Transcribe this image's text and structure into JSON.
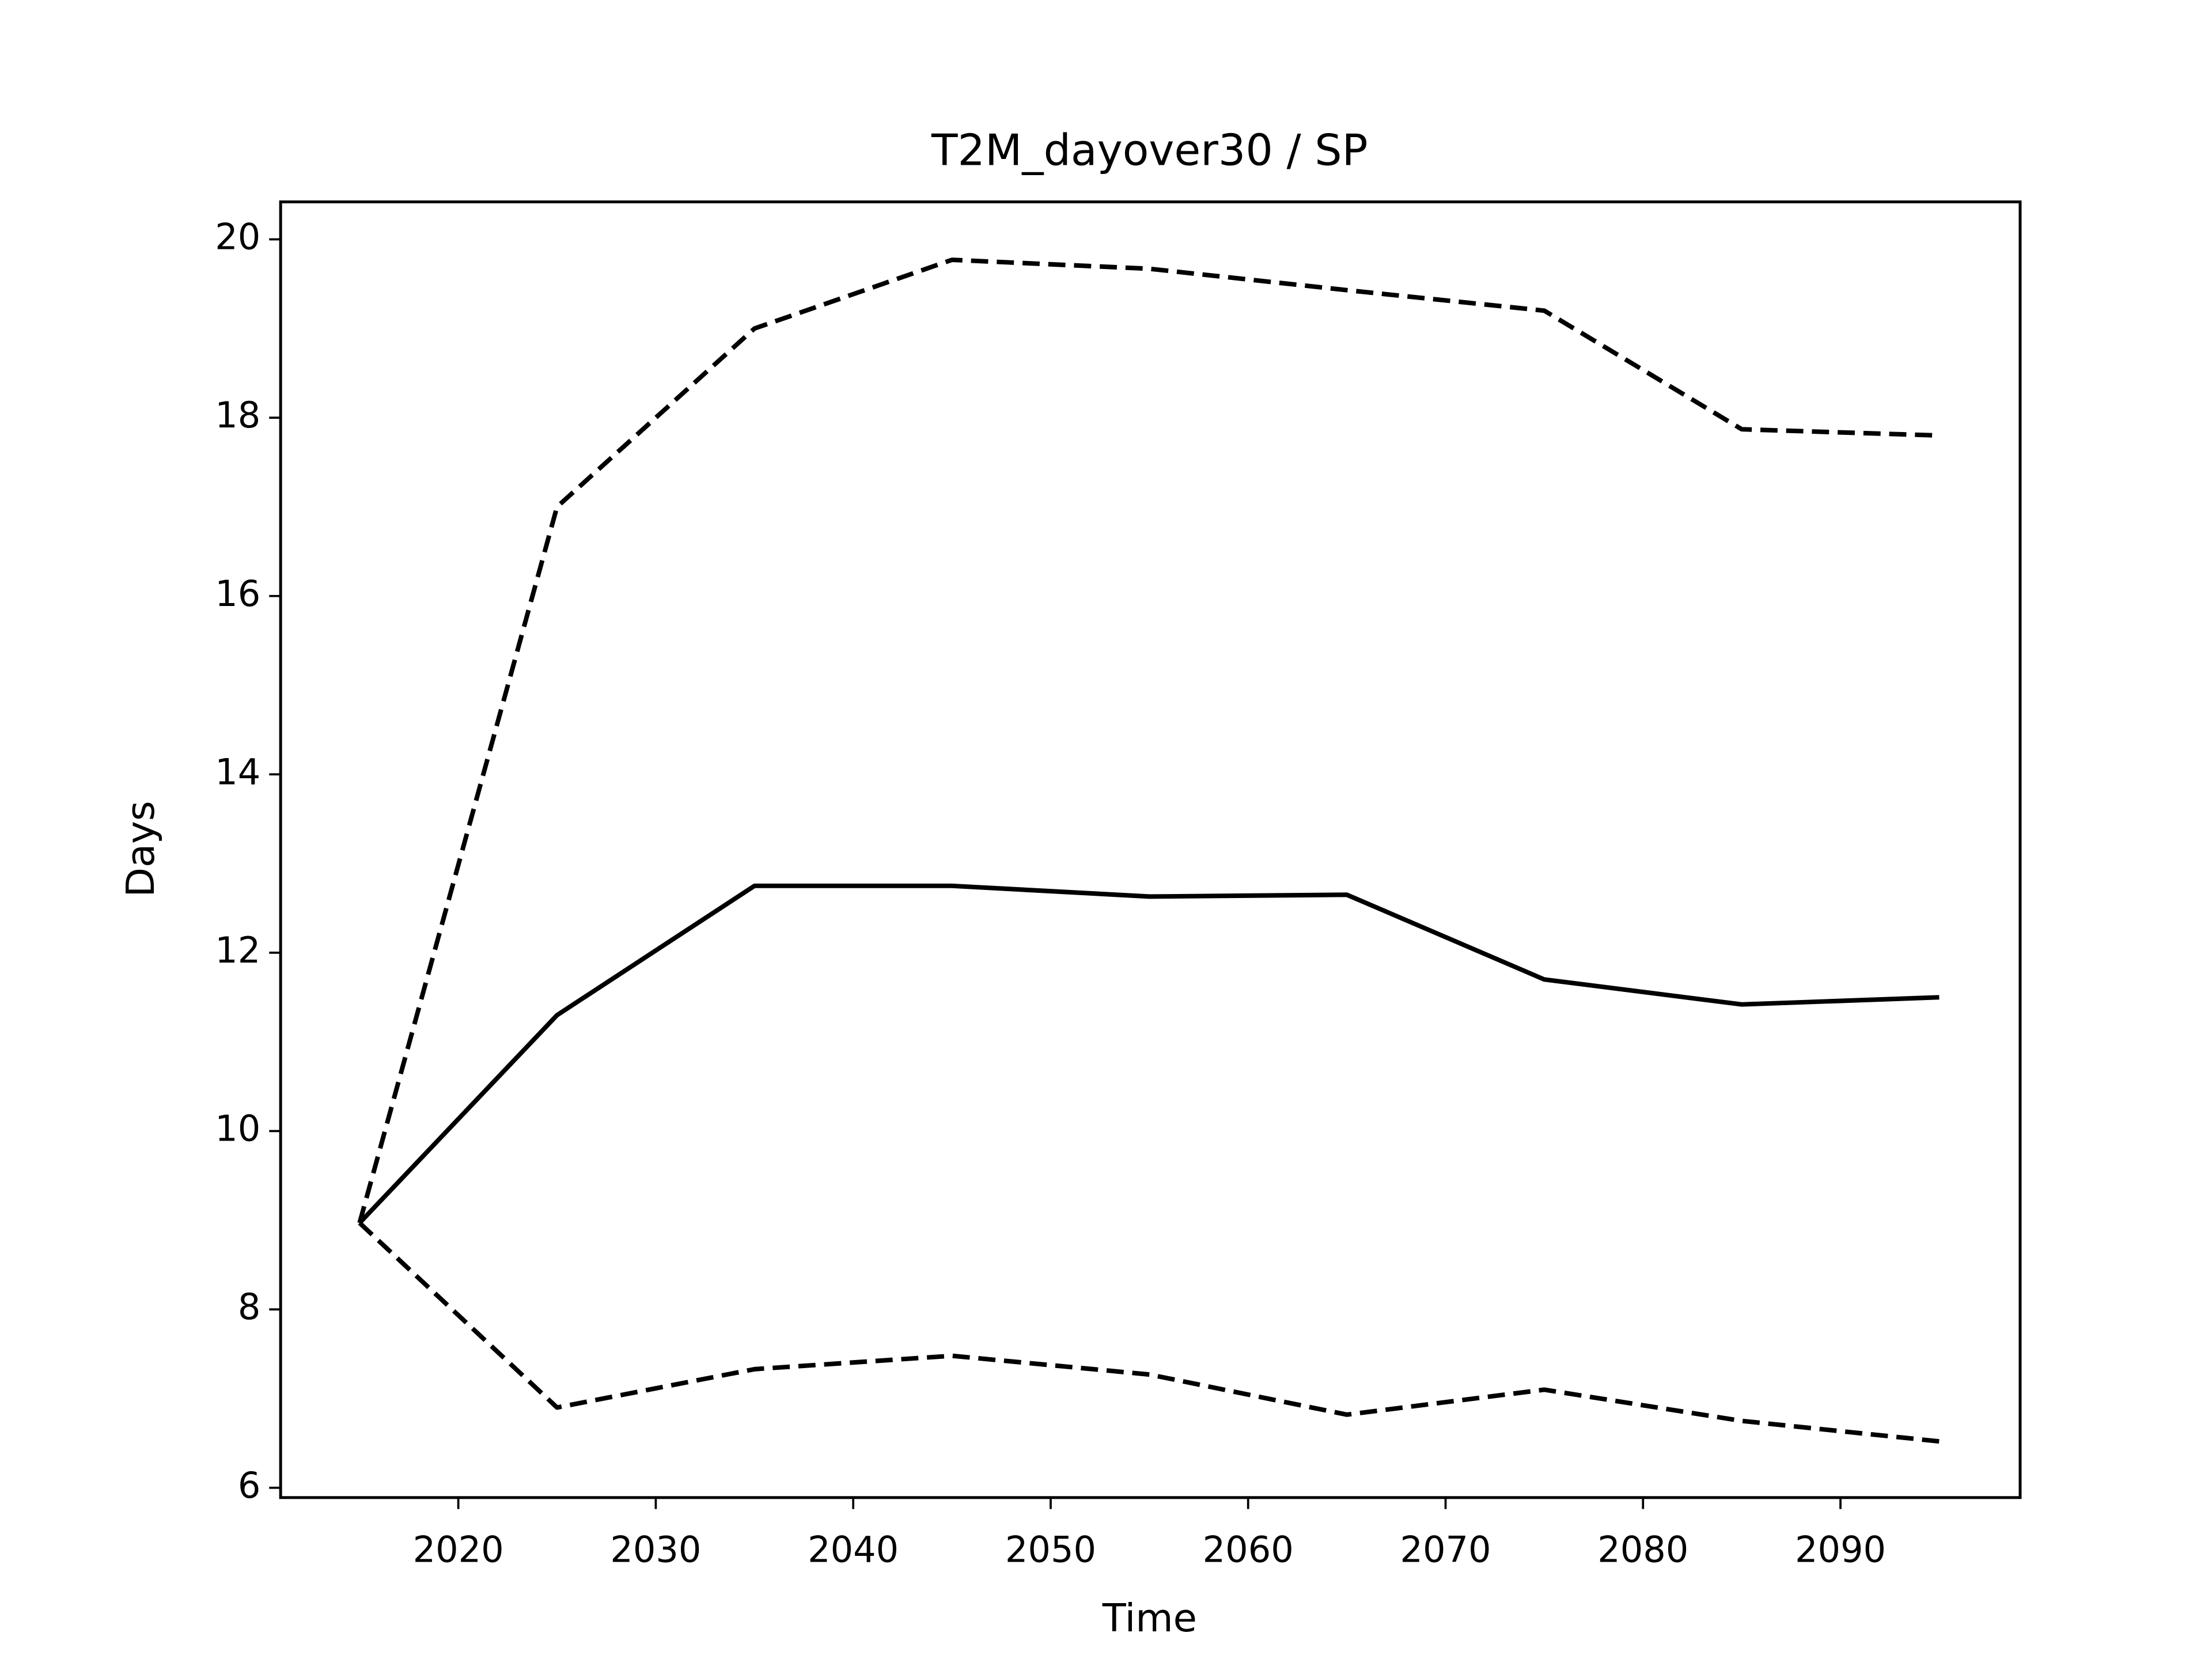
{
  "chart_data": {
    "type": "line",
    "title": "T2M_dayover30 / SP",
    "x_label": "Time",
    "y_label": "Days",
    "x": [
      2015,
      2025,
      2035,
      2045,
      2055,
      2065,
      2075,
      2085,
      2095
    ],
    "series": [
      {
        "color": "#000000",
        "linestyle": "solid",
        "values": [
          8.97,
          11.3,
          12.75,
          12.75,
          12.63,
          12.65,
          11.7,
          11.42,
          11.5
        ]
      },
      {
        "color": "#000000",
        "linestyle": "dashed",
        "values": [
          8.97,
          17.0,
          19.0,
          19.77,
          19.67,
          19.43,
          19.2,
          17.87,
          17.8
        ]
      },
      {
        "color": "#000000",
        "linestyle": "dashed",
        "values": [
          8.97,
          6.9,
          7.33,
          7.48,
          7.27,
          6.82,
          7.1,
          6.75,
          6.52
        ]
      }
    ],
    "xlim": [
      2011,
      2099.1
    ],
    "xticks": [
      2020,
      2030,
      2040,
      2050,
      2060,
      2070,
      2080,
      2090
    ],
    "ylim": [
      5.89,
      20.42
    ],
    "yticks": [
      6,
      8,
      10,
      12,
      14,
      16,
      18,
      20
    ],
    "grid": false
  }
}
